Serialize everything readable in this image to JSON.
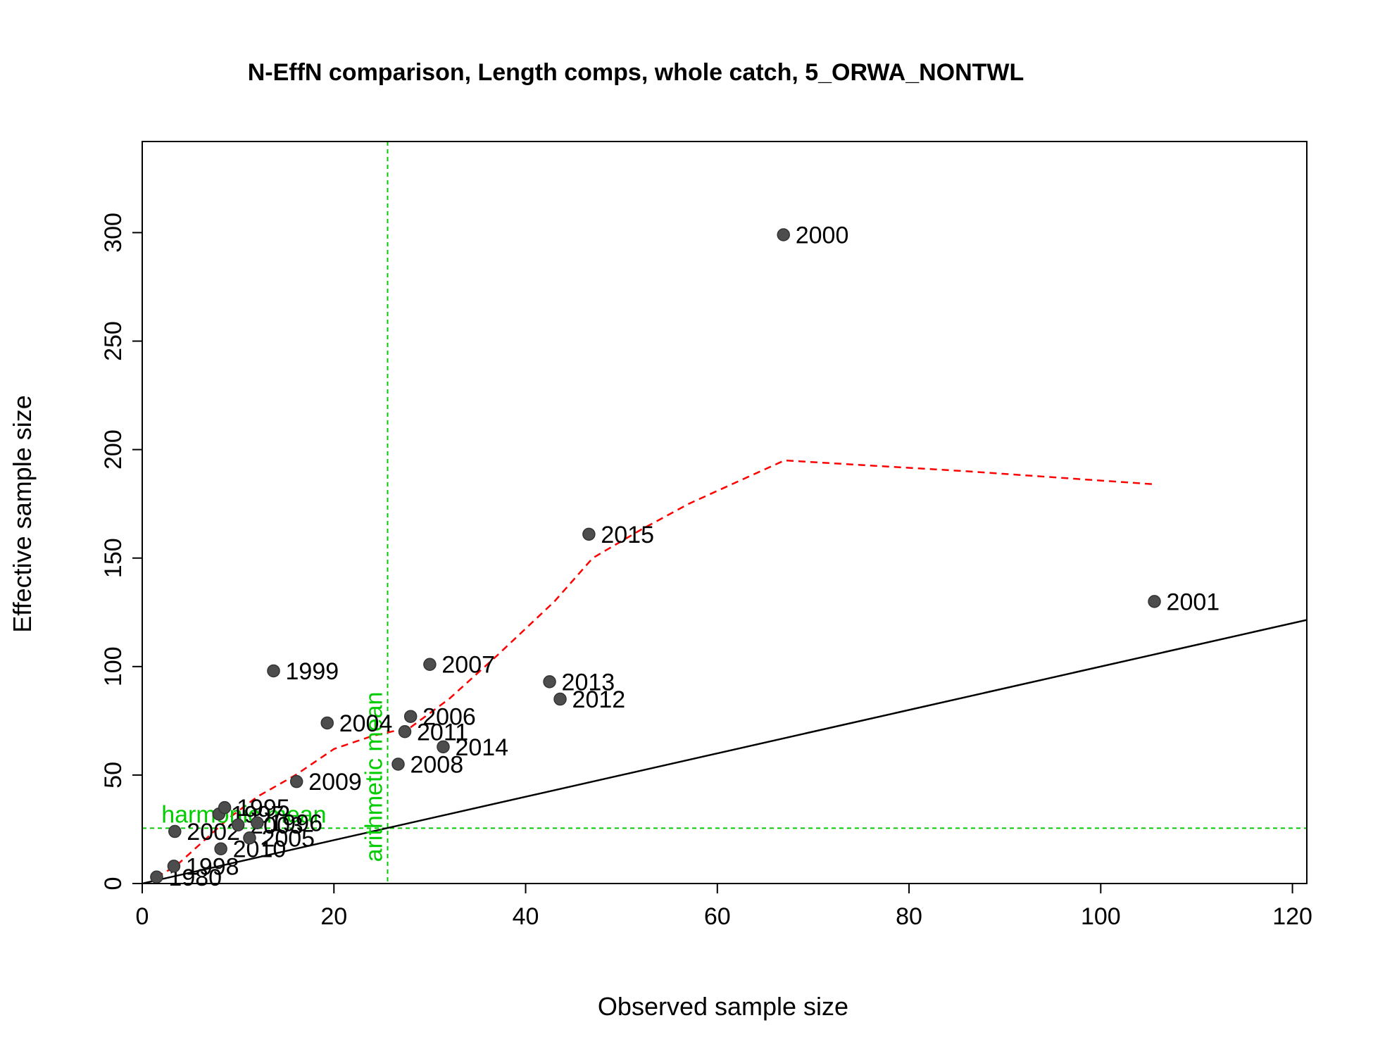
{
  "chart_data": {
    "type": "scatter",
    "title": "N-EffN comparison, Length comps, whole catch, 5_ORWA_NONTWL",
    "xlabel": "Observed sample size",
    "ylabel": "Effective sample size",
    "xlim": [
      0,
      121.5
    ],
    "ylim": [
      0,
      342
    ],
    "x_ticks": [
      0,
      20,
      40,
      60,
      80,
      100,
      120
    ],
    "y_ticks": [
      0,
      50,
      100,
      150,
      200,
      250,
      300
    ],
    "points": [
      {
        "label": "1980",
        "x": 1.5,
        "y": 3
      },
      {
        "label": "1998",
        "x": 3.3,
        "y": 8
      },
      {
        "label": "2002",
        "x": 3.4,
        "y": 24
      },
      {
        "label": "1997",
        "x": 8.0,
        "y": 32
      },
      {
        "label": "1995",
        "x": 8.6,
        "y": 35
      },
      {
        "label": "2010",
        "x": 8.2,
        "y": 16
      },
      {
        "label": "2003",
        "x": 10.0,
        "y": 27
      },
      {
        "label": "1996",
        "x": 12.0,
        "y": 28
      },
      {
        "label": "2005",
        "x": 11.2,
        "y": 21
      },
      {
        "label": "1999",
        "x": 13.7,
        "y": 98
      },
      {
        "label": "2009",
        "x": 16.1,
        "y": 47
      },
      {
        "label": "2004",
        "x": 19.3,
        "y": 74
      },
      {
        "label": "2008",
        "x": 26.7,
        "y": 55
      },
      {
        "label": "2011",
        "x": 27.4,
        "y": 70
      },
      {
        "label": "2006",
        "x": 28.0,
        "y": 77
      },
      {
        "label": "2007",
        "x": 30.0,
        "y": 101
      },
      {
        "label": "2014",
        "x": 31.4,
        "y": 63
      },
      {
        "label": "2013",
        "x": 42.5,
        "y": 93
      },
      {
        "label": "2012",
        "x": 43.6,
        "y": 85
      },
      {
        "label": "2015",
        "x": 46.6,
        "y": 161
      },
      {
        "label": "2000",
        "x": 66.9,
        "y": 299
      },
      {
        "label": "2001",
        "x": 105.6,
        "y": 130
      }
    ],
    "identity_line": [
      [
        0,
        0
      ],
      [
        121.5,
        121.5
      ]
    ],
    "smoother": [
      [
        1.5,
        3
      ],
      [
        3.5,
        8
      ],
      [
        6,
        18
      ],
      [
        9,
        30
      ],
      [
        12,
        40
      ],
      [
        16,
        50
      ],
      [
        20,
        62
      ],
      [
        24,
        68
      ],
      [
        28,
        72
      ],
      [
        32,
        85
      ],
      [
        37,
        105
      ],
      [
        43,
        130
      ],
      [
        47,
        150
      ],
      [
        52,
        163
      ],
      [
        57,
        175
      ],
      [
        62,
        185
      ],
      [
        67,
        195
      ],
      [
        86,
        190
      ],
      [
        105.6,
        184
      ]
    ],
    "harmonic_mean": 25.5,
    "arithmetic_mean": 25.6,
    "harmonic_mean_label": "harmonic mean",
    "arithmetic_mean_label": "arithmetic mean",
    "colors": {
      "points": "#4d4d4d",
      "smoother": "#ff0000",
      "mean_lines": "#00cc00",
      "identity": "#000000"
    }
  }
}
